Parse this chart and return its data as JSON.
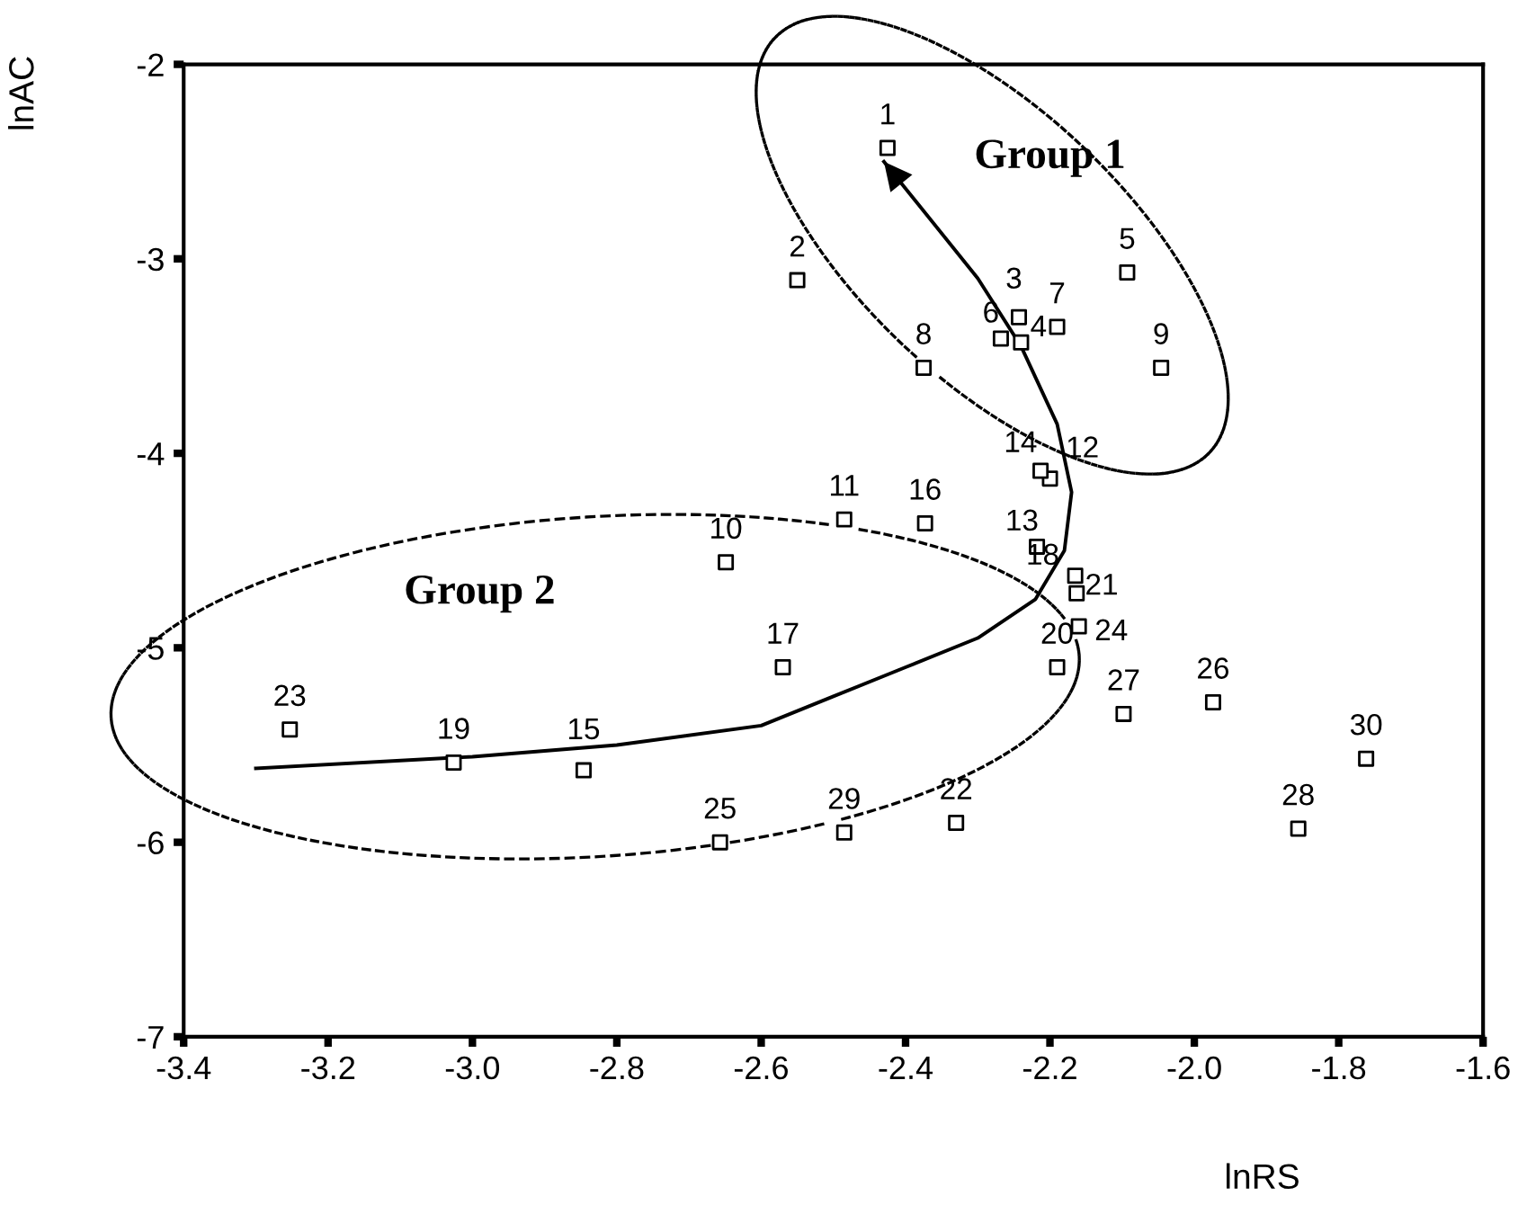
{
  "chart_data": {
    "type": "scatter",
    "xlabel": "lnRS",
    "ylabel": "lnAC",
    "xlim": [
      -3.4,
      -1.6
    ],
    "xticks": [
      -3.4,
      -3.2,
      {
        "value": -3.0,
        "label": "-3.0"
      },
      -2.8,
      -2.6,
      -2.4,
      -2.2,
      {
        "value": -2.0,
        "label": "-2.0"
      },
      -1.8,
      -1.6
    ],
    "ylim": [
      -7,
      -2
    ],
    "yticks": [
      -7,
      -6,
      -5,
      -4,
      -3,
      -2
    ],
    "grid": false,
    "legend": false,
    "marker": "square",
    "series": [
      {
        "color": "#000000",
        "x": [
          -2.425,
          -2.55,
          -2.243,
          -2.24,
          -2.093,
          -2.268,
          -2.19,
          -2.375,
          -2.046,
          -2.649,
          -2.485,
          -2.2,
          -2.218,
          -2.213,
          -2.846,
          -2.373,
          -2.57,
          -2.165,
          -3.026,
          -2.19,
          -2.163,
          -2.33,
          -3.253,
          -2.16,
          -2.657,
          -1.974,
          -2.098,
          -1.856,
          -2.485,
          -1.762
        ],
        "values": [
          -2.43,
          -3.11,
          -3.3,
          -3.43,
          -3.07,
          -3.41,
          -3.35,
          -3.56,
          -3.56,
          -4.56,
          -4.34,
          -4.13,
          -4.48,
          -4.09,
          -5.63,
          -4.36,
          -5.1,
          -4.63,
          -5.59,
          -5.1,
          -4.72,
          -5.9,
          -5.42,
          -4.89,
          -6.0,
          -5.28,
          -5.34,
          -5.93,
          -5.95,
          -5.57
        ]
      },
      {
        "type": "line",
        "color": "#000000",
        "marker": "none",
        "line_style": "solid",
        "x": [
          -3.3,
          -3.0,
          -2.8,
          -2.6,
          -2.5,
          -2.4,
          -2.3,
          -2.22,
          -2.18,
          -2.17,
          -2.19,
          -2.24,
          -2.3,
          -2.43
        ],
        "values": [
          -5.62,
          -5.56,
          -5.5,
          -5.4,
          -5.25,
          -5.1,
          -4.95,
          -4.75,
          -4.5,
          -4.2,
          -3.85,
          -3.45,
          -3.1,
          -2.5
        ]
      }
    ],
    "annotations": [
      "Group 1",
      "Group 2",
      {
        "text": "1",
        "x": -2.425,
        "y": -2.43
      },
      {
        "text": "2",
        "x": -2.55,
        "y": -3.11
      },
      {
        "text": "3",
        "x": -2.243,
        "y": -3.3
      },
      {
        "text": "4",
        "x": -2.24,
        "y": -3.43
      },
      {
        "text": "5",
        "x": -2.093,
        "y": -3.07
      },
      {
        "text": "6",
        "x": -2.268,
        "y": -3.41
      },
      {
        "text": "7",
        "x": -2.19,
        "y": -3.35
      },
      {
        "text": "8",
        "x": -2.375,
        "y": -3.56
      },
      {
        "text": "9",
        "x": -2.046,
        "y": -3.56
      },
      {
        "text": "10",
        "x": -2.649,
        "y": -4.56
      },
      {
        "text": "11",
        "x": -2.485,
        "y": -4.34
      },
      {
        "text": "12",
        "x": -2.2,
        "y": -4.13
      },
      {
        "text": "13",
        "x": -2.218,
        "y": -4.48
      },
      {
        "text": "14",
        "x": -2.213,
        "y": -4.09
      },
      {
        "text": "15",
        "x": -2.846,
        "y": -5.63
      },
      {
        "text": "16",
        "x": -2.373,
        "y": -4.36
      },
      {
        "text": "17",
        "x": -2.57,
        "y": -5.1
      },
      {
        "text": "18",
        "x": -2.165,
        "y": -4.63
      },
      {
        "text": "19",
        "x": -3.026,
        "y": -5.59
      },
      {
        "text": "20",
        "x": -2.19,
        "y": -5.1
      },
      {
        "text": "21",
        "x": -2.163,
        "y": -4.72
      },
      {
        "text": "22",
        "x": -2.33,
        "y": -5.9
      },
      {
        "text": "23",
        "x": -3.253,
        "y": -5.42
      },
      {
        "text": "24",
        "x": -2.16,
        "y": -4.89
      },
      {
        "text": "25",
        "x": -2.657,
        "y": -6.0
      },
      {
        "text": "26",
        "x": -1.974,
        "y": -5.28
      },
      {
        "text": "27",
        "x": -2.098,
        "y": -5.34
      },
      {
        "text": "28",
        "x": -1.856,
        "y": -5.93
      },
      {
        "text": "29",
        "x": -2.485,
        "y": -5.95
      },
      {
        "text": "30",
        "x": -1.762,
        "y": -5.57
      }
    ]
  }
}
